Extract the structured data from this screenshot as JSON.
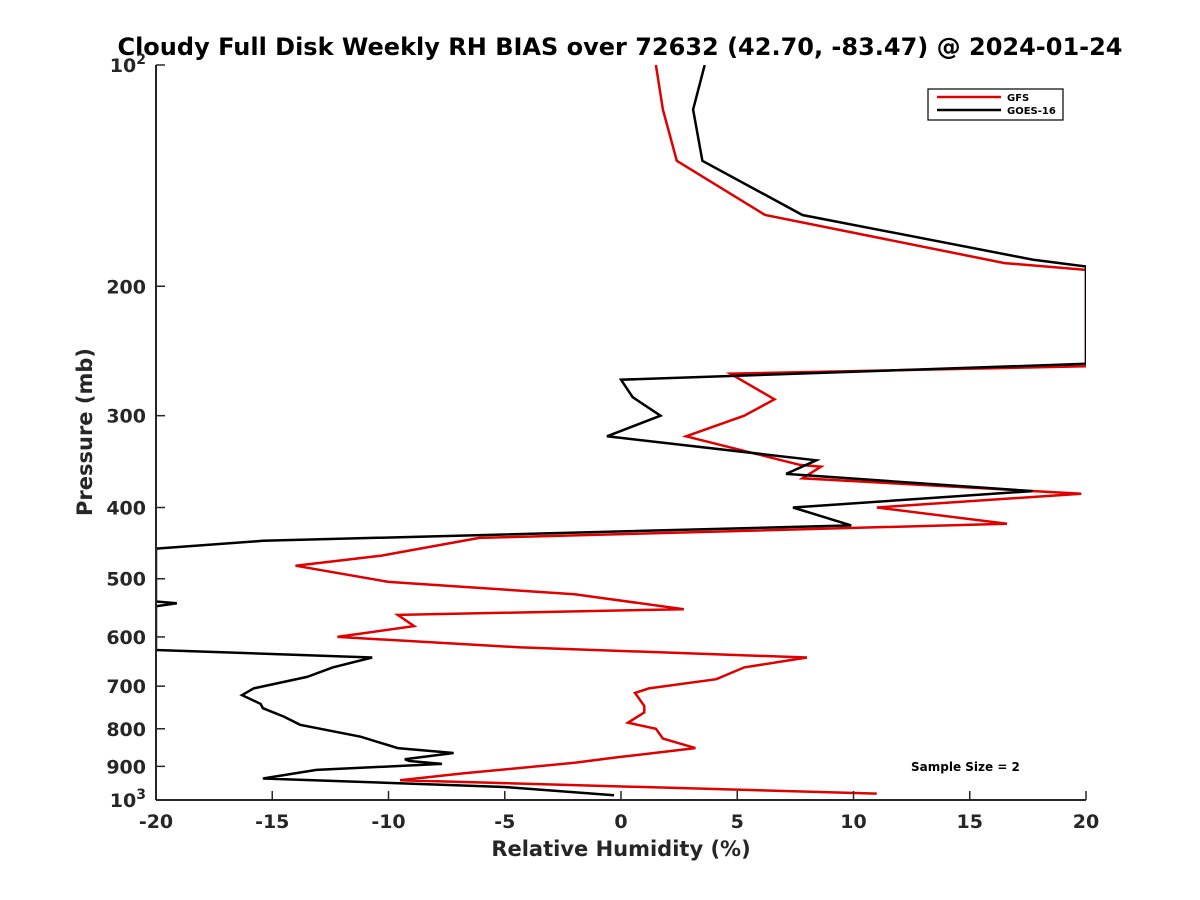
{
  "chart_data": {
    "type": "line",
    "title": "Cloudy Full Disk Weekly RH BIAS over 72632 (42.70, -83.47) @ 2024-01-24",
    "xlabel": "Relative Humidity (%)",
    "ylabel": "Pressure (mb)",
    "xlim": [
      -20,
      20
    ],
    "ylim": [
      100,
      1000
    ],
    "y_scale": "log",
    "y_reversed": true,
    "x_ticks": [
      "-20",
      "-15",
      "-10",
      "-5",
      "0",
      "5",
      "10",
      "15",
      "20"
    ],
    "y_ticks": [
      {
        "value": 100,
        "base": "10",
        "exp": "2"
      },
      {
        "value": 200,
        "label": "200"
      },
      {
        "value": 300,
        "label": "300"
      },
      {
        "value": 400,
        "label": "400"
      },
      {
        "value": 500,
        "label": "500"
      },
      {
        "value": 600,
        "label": "600"
      },
      {
        "value": 700,
        "label": "700"
      },
      {
        "value": 800,
        "label": "800"
      },
      {
        "value": 900,
        "label": "900"
      },
      {
        "value": 1000,
        "base": "10",
        "exp": "3"
      }
    ],
    "grid": false,
    "legend_position": "top-right",
    "annotation": "Sample Size = 2",
    "series": [
      {
        "name": "GFS",
        "color": "#e00000",
        "x": [
          1.5,
          1.8,
          2.4,
          6.2,
          16.5,
          20,
          20,
          4.7,
          6.6,
          5.3,
          2.8,
          7.7,
          8.6,
          7.8,
          19.8,
          11.0,
          16.6,
          -6.1,
          -10.3,
          -14.0,
          -10.0,
          -2.0,
          2.7,
          -9.6,
          -8.9,
          -12.2,
          -4.3,
          8.0,
          5.3,
          4.1,
          1.2,
          0.6,
          1.0,
          1.0,
          0.3,
          1.5,
          1.8,
          3.2,
          -0.2,
          -2.0,
          -6.8,
          -9.5,
          11.0
        ],
        "y": [
          100,
          115,
          135,
          160,
          186,
          190,
          257,
          263,
          285,
          300,
          320,
          350,
          352,
          365,
          383,
          400,
          421,
          440,
          465,
          480,
          505,
          525,
          550,
          560,
          580,
          600,
          620,
          640,
          660,
          685,
          705,
          715,
          745,
          760,
          785,
          800,
          825,
          850,
          875,
          890,
          920,
          940,
          980
        ]
      },
      {
        "name": "GOES-16",
        "color": "#000000",
        "x": [
          3.6,
          3.1,
          3.5,
          7.8,
          17.7,
          20,
          20,
          0,
          0.5,
          1.7,
          -0.6,
          8.4,
          7.1,
          17.7,
          7.4,
          9.9,
          -15.4,
          -20,
          -20,
          -19.1,
          -20,
          -20,
          -10.7,
          -12.4,
          -13.5,
          -15.8,
          -16.3,
          -15.5,
          -15.4,
          -14.5,
          -13.8,
          -11.2,
          -9.6,
          -7.2,
          -9.3,
          -9.1,
          -7.7,
          -13.1,
          -15.4,
          -5.0,
          -0.3
        ],
        "y": [
          100,
          115,
          135,
          160,
          184,
          188,
          255,
          268,
          283,
          300,
          320,
          345,
          360,
          380,
          400,
          423,
          444,
          455,
          537,
          540,
          545,
          625,
          640,
          660,
          680,
          705,
          720,
          740,
          750,
          770,
          790,
          820,
          850,
          863,
          880,
          885,
          893,
          910,
          935,
          960,
          985
        ]
      }
    ]
  }
}
